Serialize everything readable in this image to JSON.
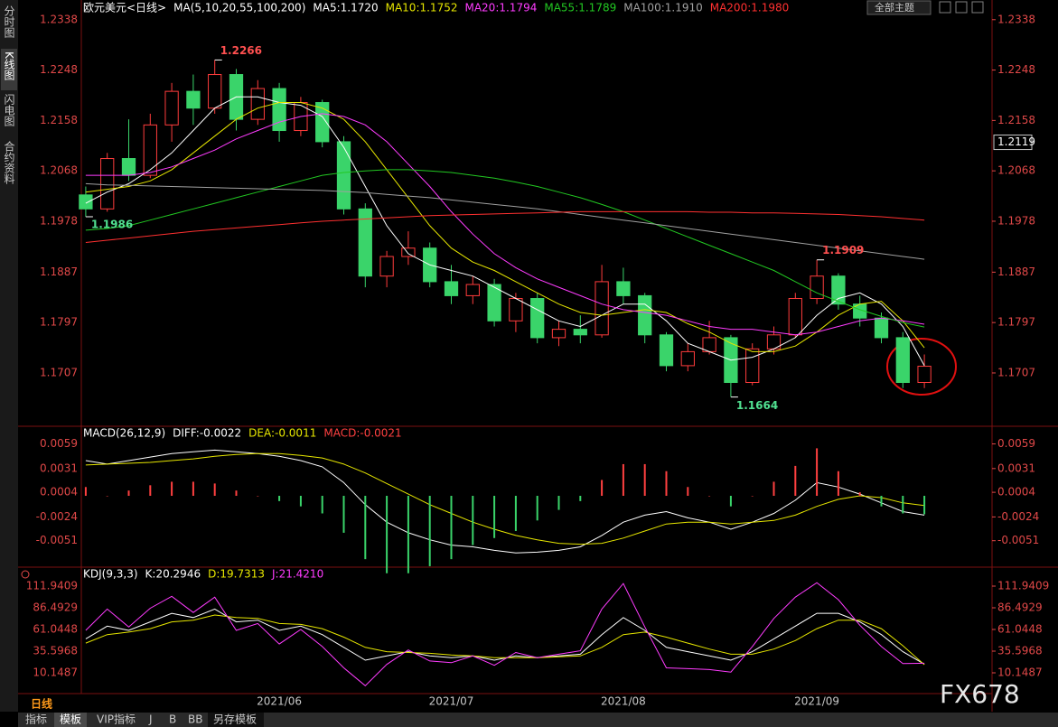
{
  "chart_data": [
    {
      "type": "candlestick",
      "title": "欧元美元<日线>",
      "subtitle": "MA(5,10,20,55,100,200)",
      "categories": [
        null,
        null,
        null,
        null,
        null,
        null,
        null,
        null,
        null,
        "2021/06",
        null,
        null,
        null,
        null,
        null,
        null,
        null,
        "2021/07",
        null,
        null,
        null,
        null,
        null,
        null,
        null,
        "2021/08",
        null,
        null,
        null,
        null,
        null,
        null,
        null,
        null,
        "2021/09",
        null,
        null,
        null,
        null,
        null
      ],
      "open": [
        1.2025,
        1.2,
        1.209,
        1.206,
        1.215,
        1.221,
        1.218,
        1.224,
        1.216,
        1.2215,
        1.214,
        1.219,
        1.212,
        1.2,
        1.188,
        1.1915,
        1.193,
        1.187,
        1.1845,
        1.1865,
        1.18,
        1.184,
        1.177,
        1.1785,
        1.1775,
        1.187,
        1.1845,
        1.1775,
        1.172,
        1.1745,
        1.177,
        1.169,
        1.175,
        1.1775,
        1.184,
        1.188,
        1.183,
        1.1805,
        1.177,
        1.169
      ],
      "high": [
        1.204,
        1.21,
        1.216,
        1.217,
        1.2225,
        1.224,
        1.2266,
        1.225,
        1.223,
        1.2225,
        1.22,
        1.2195,
        1.213,
        1.201,
        1.1925,
        1.196,
        1.194,
        1.19,
        1.188,
        1.1875,
        1.185,
        1.185,
        1.18,
        1.181,
        1.19,
        1.1895,
        1.185,
        1.178,
        1.176,
        1.18,
        1.1775,
        1.176,
        1.179,
        1.185,
        1.1909,
        1.1885,
        1.1845,
        1.1815,
        1.178,
        1.174
      ],
      "low": [
        1.1986,
        1.1995,
        1.205,
        1.2055,
        1.212,
        1.215,
        1.217,
        1.214,
        1.215,
        1.212,
        1.213,
        1.211,
        1.199,
        1.186,
        1.186,
        1.19,
        1.186,
        1.183,
        1.183,
        1.179,
        1.178,
        1.176,
        1.1755,
        1.176,
        1.177,
        1.183,
        1.176,
        1.171,
        1.171,
        1.174,
        1.1664,
        1.1685,
        1.174,
        1.177,
        1.183,
        1.182,
        1.179,
        1.176,
        1.168,
        1.168
      ],
      "close": [
        1.2,
        1.209,
        1.206,
        1.215,
        1.221,
        1.218,
        1.224,
        1.216,
        1.2215,
        1.214,
        1.219,
        1.212,
        1.2,
        1.188,
        1.1915,
        1.193,
        1.187,
        1.1845,
        1.1865,
        1.18,
        1.184,
        1.177,
        1.1785,
        1.1775,
        1.187,
        1.1845,
        1.1775,
        1.172,
        1.1745,
        1.177,
        1.169,
        1.175,
        1.1775,
        1.184,
        1.188,
        1.183,
        1.1805,
        1.177,
        1.169,
        1.1719
      ],
      "up_color": "#ff3c3c",
      "down_color": "#3ad46a",
      "series": [
        {
          "name": "MA5:1.1720",
          "color": "#ffffff",
          "values": [
            1.201,
            1.203,
            1.2045,
            1.207,
            1.21,
            1.214,
            1.218,
            1.22,
            1.22,
            1.219,
            1.2185,
            1.2165,
            1.211,
            1.204,
            1.197,
            1.192,
            1.19,
            1.189,
            1.188,
            1.186,
            1.184,
            1.182,
            1.18,
            1.179,
            1.181,
            1.183,
            1.183,
            1.18,
            1.176,
            1.1745,
            1.173,
            1.1735,
            1.175,
            1.177,
            1.181,
            1.184,
            1.185,
            1.183,
            1.179,
            1.172
          ]
        },
        {
          "name": "MA10:1.1752",
          "color": "#e6e600",
          "values": [
            1.203,
            1.2035,
            1.204,
            1.205,
            1.207,
            1.21,
            1.213,
            1.216,
            1.218,
            1.219,
            1.219,
            1.218,
            1.216,
            1.212,
            1.207,
            1.202,
            1.197,
            1.193,
            1.1905,
            1.189,
            1.187,
            1.185,
            1.183,
            1.1815,
            1.181,
            1.1815,
            1.182,
            1.1815,
            1.1795,
            1.178,
            1.176,
            1.1745,
            1.1745,
            1.1755,
            1.178,
            1.181,
            1.183,
            1.1835,
            1.18,
            1.1752
          ]
        },
        {
          "name": "MA20:1.1794",
          "color": "#ff3cff",
          "values": [
            1.206,
            1.206,
            1.206,
            1.2065,
            1.2075,
            1.209,
            1.2105,
            1.2125,
            1.214,
            1.2155,
            1.2165,
            1.217,
            1.2165,
            1.215,
            1.212,
            1.208,
            1.204,
            1.1995,
            1.1955,
            1.192,
            1.1895,
            1.1875,
            1.186,
            1.1845,
            1.183,
            1.182,
            1.1815,
            1.181,
            1.18,
            1.179,
            1.1785,
            1.1785,
            1.178,
            1.1775,
            1.178,
            1.179,
            1.18,
            1.1805,
            1.18,
            1.1794
          ]
        },
        {
          "name": "MA55:1.1789",
          "color": "#22c822",
          "values": [
            1.1962,
            1.1965,
            1.197,
            1.198,
            1.199,
            1.2,
            1.201,
            1.202,
            1.203,
            1.204,
            1.205,
            1.206,
            1.2065,
            1.2068,
            1.207,
            1.207,
            1.2068,
            1.2065,
            1.206,
            1.2055,
            1.2048,
            1.204,
            1.203,
            1.202,
            1.2008,
            1.1995,
            1.198,
            1.1965,
            1.195,
            1.1935,
            1.192,
            1.1905,
            1.189,
            1.187,
            1.185,
            1.1835,
            1.182,
            1.1808,
            1.1797,
            1.1789
          ]
        },
        {
          "name": "MA100:1.1910",
          "color": "#a0a0a0",
          "values": [
            1.2045,
            1.2043,
            1.2042,
            1.2041,
            1.204,
            1.2039,
            1.2038,
            1.2037,
            1.2036,
            1.2035,
            1.2034,
            1.2033,
            1.2031,
            1.2029,
            1.2026,
            1.2023,
            1.202,
            1.2016,
            1.2012,
            1.2008,
            1.2004,
            1.2,
            1.1995,
            1.199,
            1.1985,
            1.198,
            1.1975,
            1.197,
            1.1965,
            1.196,
            1.1955,
            1.195,
            1.1945,
            1.194,
            1.1935,
            1.193,
            1.1925,
            1.192,
            1.1915,
            1.191
          ]
        },
        {
          "name": "MA200:1.1980",
          "color": "#ff3030",
          "values": [
            1.194,
            1.1944,
            1.1948,
            1.1952,
            1.1956,
            1.196,
            1.1963,
            1.1966,
            1.1969,
            1.1972,
            1.1975,
            1.1978,
            1.198,
            1.1982,
            1.1984,
            1.1986,
            1.1988,
            1.1989,
            1.199,
            1.1991,
            1.1992,
            1.1993,
            1.1994,
            1.1995,
            1.1995,
            1.1995,
            1.1995,
            1.1995,
            1.1995,
            1.1994,
            1.1994,
            1.1993,
            1.1993,
            1.1992,
            1.1991,
            1.199,
            1.1988,
            1.1986,
            1.1983,
            1.198
          ]
        }
      ],
      "cursor_price": 1.2119,
      "ylim": [
        1.1615,
        1.2357
      ],
      "yticks": [
        1.2338,
        1.2248,
        1.2158,
        1.2068,
        1.1978,
        1.1887,
        1.1797,
        1.1707
      ]
    },
    {
      "type": "line",
      "title": "MACD(26,12,9)",
      "series": [
        {
          "name": "DIFF:-0.0022",
          "color": "#ffffff",
          "values": [
            0.004,
            0.0036,
            0.004,
            0.0044,
            0.0048,
            0.005,
            0.0052,
            0.005,
            0.0048,
            0.0045,
            0.004,
            0.0033,
            0.0015,
            -0.001,
            -0.003,
            -0.0042,
            -0.005,
            -0.0056,
            -0.0058,
            -0.0062,
            -0.0065,
            -0.0064,
            -0.0062,
            -0.0058,
            -0.0045,
            -0.003,
            -0.0022,
            -0.0018,
            -0.0025,
            -0.003,
            -0.0038,
            -0.003,
            -0.002,
            -0.0005,
            0.0015,
            0.001,
            0.0002,
            -0.0008,
            -0.0018,
            -0.0022
          ]
        },
        {
          "name": "DEA:-0.0011",
          "color": "#e6e600",
          "values": [
            0.0035,
            0.0036,
            0.0037,
            0.0038,
            0.004,
            0.0042,
            0.0045,
            0.0047,
            0.0048,
            0.0048,
            0.0046,
            0.0043,
            0.0036,
            0.0026,
            0.0014,
            0.0002,
            -0.001,
            -0.002,
            -0.003,
            -0.0038,
            -0.0045,
            -0.005,
            -0.0054,
            -0.0055,
            -0.0054,
            -0.0048,
            -0.004,
            -0.0032,
            -0.003,
            -0.003,
            -0.0032,
            -0.003,
            -0.0028,
            -0.0022,
            -0.0012,
            -0.0004,
            0.0,
            -0.0002,
            -0.0008,
            -0.0011
          ]
        },
        {
          "name": "MACD:-0.0021",
          "type": "bar",
          "color": "#ff4040",
          "negative_color": "#3ad46a",
          "values": [
            0.001,
            0.0,
            0.0006,
            0.0012,
            0.0016,
            0.0016,
            0.0014,
            0.0006,
            0.0,
            -0.0006,
            -0.0012,
            -0.002,
            -0.0042,
            -0.0072,
            -0.0088,
            -0.0088,
            -0.008,
            -0.0072,
            -0.0056,
            -0.0048,
            -0.004,
            -0.0028,
            -0.0016,
            -0.0006,
            0.0018,
            0.0036,
            0.0036,
            0.0028,
            0.001,
            0.0,
            -0.0012,
            0.0,
            0.0016,
            0.0034,
            0.0054,
            0.0028,
            0.0004,
            -0.0012,
            -0.002,
            -0.0021
          ]
        }
      ],
      "ylim": [
        -0.0078,
        0.0077
      ],
      "yticks": [
        0.0059,
        0.0031,
        0.0004,
        -0.0024,
        -0.0051
      ]
    },
    {
      "type": "line",
      "title": "KDJ(9,3,3)",
      "series": [
        {
          "name": "K:20.2946",
          "color": "#ffffff",
          "values": [
            50,
            65,
            60,
            70,
            80,
            75,
            85,
            70,
            72,
            60,
            65,
            55,
            40,
            25,
            30,
            35,
            30,
            28,
            30,
            25,
            30,
            28,
            30,
            32,
            55,
            75,
            60,
            40,
            35,
            30,
            25,
            35,
            50,
            65,
            80,
            80,
            70,
            55,
            35,
            20.2946
          ]
        },
        {
          "name": "D:19.7313",
          "color": "#e6e600",
          "values": [
            45,
            55,
            58,
            62,
            70,
            72,
            78,
            75,
            74,
            68,
            67,
            62,
            52,
            40,
            35,
            34,
            33,
            31,
            30,
            28,
            28,
            28,
            29,
            30,
            40,
            55,
            58,
            52,
            45,
            38,
            32,
            32,
            38,
            48,
            62,
            72,
            72,
            62,
            42,
            19.7313
          ]
        },
        {
          "name": "J:21.4210",
          "color": "#ff3cff",
          "values": [
            60,
            85,
            64,
            86,
            100,
            81,
            99,
            60,
            68,
            44,
            61,
            41,
            16,
            -5,
            20,
            37,
            24,
            22,
            30,
            19,
            34,
            28,
            32,
            36,
            85,
            115,
            64,
            16,
            15,
            14,
            11,
            41,
            74,
            99,
            116,
            96,
            66,
            41,
            21,
            21.421
          ]
        }
      ],
      "ylim": [
        -11.06,
        132.09
      ],
      "yticks": [
        111.9409,
        86.4929,
        61.0448,
        35.5968,
        10.1487
      ]
    }
  ],
  "ui": {
    "side_tabs": [
      "分时图",
      "K线图",
      "闪电图",
      "合约资料"
    ],
    "period": "日线",
    "bottom_tabs": [
      "指标",
      "模板",
      "VIP指标",
      "J",
      "B",
      "BB",
      "另存模板"
    ],
    "theme_select": "全部主题",
    "watermark": "FX678"
  }
}
